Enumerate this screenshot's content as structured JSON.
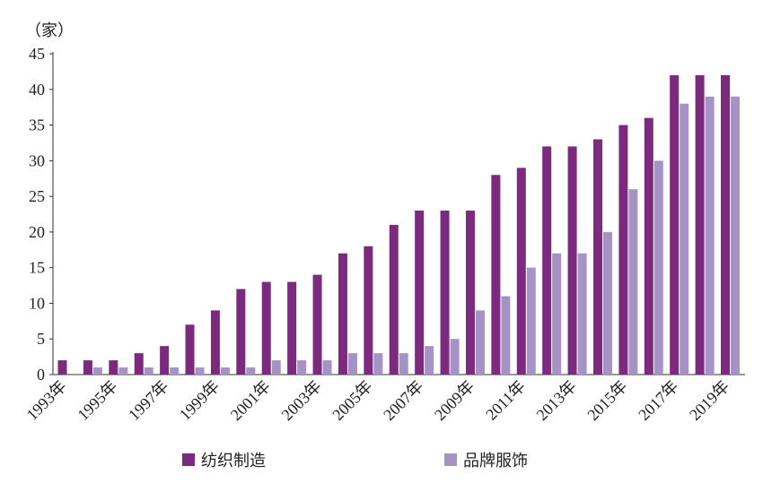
{
  "chart_data": {
    "type": "bar",
    "ylabel": "（家）",
    "ylim": [
      0,
      45
    ],
    "yticks": [
      0,
      5,
      10,
      15,
      20,
      25,
      30,
      35,
      40,
      45
    ],
    "categories": [
      "1993年",
      "1994年",
      "1995年",
      "1996年",
      "1997年",
      "1998年",
      "1999年",
      "2000年",
      "2001年",
      "2002年",
      "2003年",
      "2004年",
      "2005年",
      "2006年",
      "2007年",
      "2008年",
      "2009年",
      "2010年",
      "2011年",
      "2012年",
      "2013年",
      "2014年",
      "2015年",
      "2016年",
      "2017年",
      "2018年",
      "2019年"
    ],
    "xtick_labels": [
      "1993年",
      "1995年",
      "1997年",
      "1999年",
      "2001年",
      "2003年",
      "2005年",
      "2007年",
      "2009年",
      "2011年",
      "2013年",
      "2015年",
      "2017年",
      "2019年"
    ],
    "series": [
      {
        "name": "纺织制造",
        "color": "#7b2a7e",
        "values": [
          2,
          2,
          2,
          3,
          4,
          7,
          9,
          12,
          13,
          13,
          14,
          17,
          18,
          21,
          23,
          23,
          23,
          28,
          29,
          32,
          32,
          33,
          35,
          36,
          42,
          42,
          42
        ]
      },
      {
        "name": "品牌服饰",
        "color": "#a693c6",
        "values": [
          0,
          1,
          1,
          1,
          1,
          1,
          1,
          1,
          2,
          2,
          2,
          3,
          3,
          3,
          4,
          5,
          9,
          11,
          15,
          17,
          17,
          20,
          26,
          30,
          38,
          39,
          39
        ]
      }
    ],
    "grid": false,
    "legend_position": "bottom"
  }
}
